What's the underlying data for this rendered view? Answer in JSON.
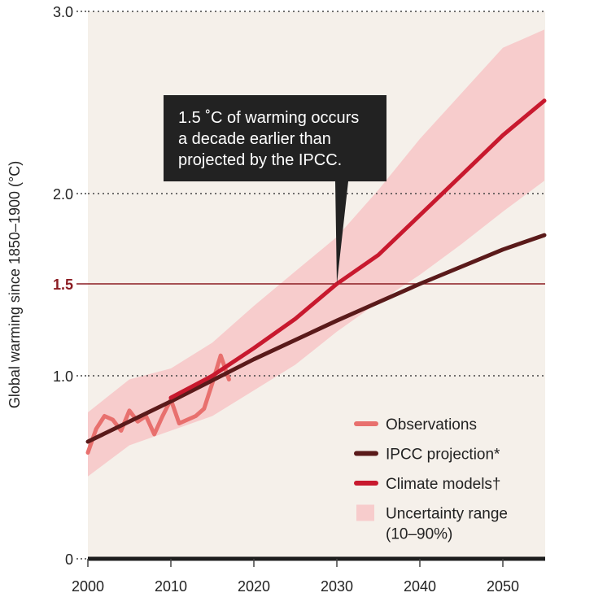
{
  "chart_data": {
    "type": "line",
    "ylabel": "Global warming since 1850–1900 (°C)",
    "xlabel": "",
    "xlim": [
      2000,
      2055
    ],
    "x_ticks": [
      "2000",
      "2010",
      "2020",
      "2030",
      "2040",
      "2050"
    ],
    "y_ticks": [
      {
        "value": 0,
        "label": "0"
      },
      {
        "value": 1.0,
        "label": "1.0"
      },
      {
        "value": 1.5,
        "label": "1.5"
      },
      {
        "value": 2.0,
        "label": "2.0"
      },
      {
        "value": 3.0,
        "label": "3.0"
      }
    ],
    "y_axis_break": "nonlinear scale: 0 to 1.0 compressed, 2.0 to 3.0 compressed",
    "grid": "dotted at 1.0, 2.0, 3.0",
    "reference_line": {
      "y": 1.5
    },
    "series": [
      {
        "name": "Observations",
        "color": "#e8706e",
        "x": [
          2000,
          2001,
          2002,
          2003,
          2004,
          2005,
          2006,
          2007,
          2008,
          2009,
          2010,
          2011,
          2012,
          2013,
          2014,
          2015,
          2016,
          2017
        ],
        "y": [
          0.58,
          0.71,
          0.78,
          0.76,
          0.7,
          0.81,
          0.75,
          0.78,
          0.68,
          0.78,
          0.87,
          0.74,
          0.76,
          0.78,
          0.82,
          0.96,
          1.11,
          0.98
        ]
      },
      {
        "name": "IPCC projection*",
        "color": "#5a1a1a",
        "x": [
          2000,
          2010,
          2020,
          2030,
          2040,
          2050,
          2055
        ],
        "y": [
          0.64,
          0.86,
          1.09,
          1.3,
          1.5,
          1.69,
          1.77
        ]
      },
      {
        "name": "Climate models†",
        "color": "#c8192e",
        "x": [
          2010,
          2015,
          2020,
          2025,
          2030,
          2035,
          2040,
          2045,
          2050,
          2055
        ],
        "y": [
          0.88,
          1.0,
          1.15,
          1.31,
          1.5,
          1.66,
          1.88,
          2.1,
          2.32,
          2.51
        ]
      }
    ],
    "uncertainty_range": {
      "name": "Uncertainty range (10–90%)",
      "color": "#f7cccc",
      "x": [
        2000,
        2005,
        2010,
        2015,
        2020,
        2025,
        2030,
        2035,
        2040,
        2045,
        2050,
        2055
      ],
      "lower": [
        0.45,
        0.62,
        0.7,
        0.78,
        0.92,
        1.06,
        1.24,
        1.4,
        1.55,
        1.72,
        1.9,
        2.07
      ],
      "upper": [
        0.8,
        0.98,
        1.04,
        1.18,
        1.38,
        1.57,
        1.76,
        2.02,
        2.3,
        2.55,
        2.8,
        2.9
      ]
    },
    "annotation": {
      "lines": [
        "1.5 ˚C of warming occurs",
        "a decade earlier than",
        "projected by the IPCC."
      ],
      "pointer_x": 2030,
      "pointer_y": 1.5
    },
    "legend": {
      "placement": "bottom-right",
      "entries": [
        {
          "label": "Observations",
          "color": "#e8706e",
          "kind": "line"
        },
        {
          "label": "IPCC projection*",
          "color": "#5a1a1a",
          "kind": "line"
        },
        {
          "label": "Climate models†",
          "color": "#c8192e",
          "kind": "line"
        },
        {
          "label": "Uncertainty range",
          "label2": "(10–90%)",
          "color": "#f7cccc",
          "kind": "patch"
        }
      ]
    }
  },
  "colors": {
    "plot_background": "#f5f0ea",
    "reference_line": "#8b1c22",
    "callout_background": "#222222",
    "axis": "#1e1e1e"
  }
}
